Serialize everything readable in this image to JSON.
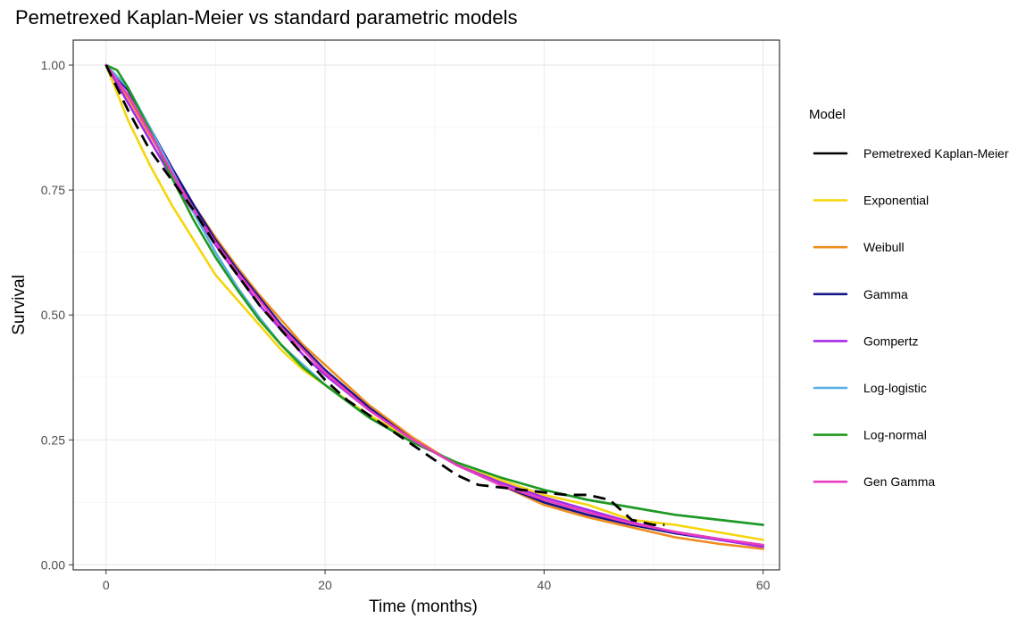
{
  "chart_data": {
    "type": "line",
    "title": "Pemetrexed Kaplan-Meier vs standard parametric models",
    "xlabel": "Time (months)",
    "ylabel": "Survival",
    "xlim": [
      -3,
      61.5
    ],
    "ylim": [
      -0.01,
      1.05
    ],
    "xticks": [
      0,
      20,
      40,
      60
    ],
    "yticks": [
      0.0,
      0.25,
      0.5,
      0.75,
      1.0
    ],
    "ytick_labels": [
      "0.00",
      "0.25",
      "0.50",
      "0.75",
      "1.00"
    ],
    "grid": true,
    "legend": {
      "title": "Model",
      "position": "right"
    },
    "series": [
      {
        "name": "Pemetrexed Kaplan-Meier",
        "color": "#000000",
        "style": "dashed",
        "points": [
          [
            0,
            1.0
          ],
          [
            2,
            0.91
          ],
          [
            4,
            0.83
          ],
          [
            6,
            0.77
          ],
          [
            8,
            0.71
          ],
          [
            10,
            0.64
          ],
          [
            12,
            0.58
          ],
          [
            14,
            0.52
          ],
          [
            16,
            0.47
          ],
          [
            18,
            0.42
          ],
          [
            20,
            0.37
          ],
          [
            22,
            0.33
          ],
          [
            24,
            0.3
          ],
          [
            26,
            0.27
          ],
          [
            28,
            0.24
          ],
          [
            30,
            0.21
          ],
          [
            32,
            0.18
          ],
          [
            34,
            0.16
          ],
          [
            36,
            0.155
          ],
          [
            38,
            0.15
          ],
          [
            40,
            0.145
          ],
          [
            42,
            0.14
          ],
          [
            44,
            0.14
          ],
          [
            46,
            0.13
          ],
          [
            47,
            0.11
          ],
          [
            48,
            0.09
          ],
          [
            50,
            0.08
          ],
          [
            51,
            0.08
          ]
        ]
      },
      {
        "name": "Exponential",
        "color": "#f5d60d",
        "style": "solid",
        "points": [
          [
            0,
            1.0
          ],
          [
            2,
            0.89
          ],
          [
            4,
            0.8
          ],
          [
            6,
            0.72
          ],
          [
            8,
            0.65
          ],
          [
            10,
            0.58
          ],
          [
            12,
            0.53
          ],
          [
            14,
            0.48
          ],
          [
            16,
            0.43
          ],
          [
            18,
            0.39
          ],
          [
            20,
            0.36
          ],
          [
            24,
            0.3
          ],
          [
            28,
            0.25
          ],
          [
            32,
            0.2
          ],
          [
            36,
            0.17
          ],
          [
            40,
            0.14
          ],
          [
            44,
            0.12
          ],
          [
            48,
            0.09
          ],
          [
            52,
            0.08
          ],
          [
            56,
            0.065
          ],
          [
            60,
            0.05
          ]
        ]
      },
      {
        "name": "Weibull",
        "color": "#f08c1d",
        "style": "solid",
        "points": [
          [
            0,
            1.0
          ],
          [
            2,
            0.935
          ],
          [
            4,
            0.86
          ],
          [
            6,
            0.79
          ],
          [
            8,
            0.72
          ],
          [
            10,
            0.655
          ],
          [
            12,
            0.595
          ],
          [
            14,
            0.54
          ],
          [
            16,
            0.49
          ],
          [
            18,
            0.44
          ],
          [
            20,
            0.4
          ],
          [
            24,
            0.32
          ],
          [
            28,
            0.255
          ],
          [
            32,
            0.2
          ],
          [
            36,
            0.16
          ],
          [
            40,
            0.12
          ],
          [
            44,
            0.095
          ],
          [
            48,
            0.075
          ],
          [
            52,
            0.055
          ],
          [
            56,
            0.042
          ],
          [
            60,
            0.032
          ]
        ]
      },
      {
        "name": "Gamma",
        "color": "#14148a",
        "style": "solid",
        "points": [
          [
            0,
            1.0
          ],
          [
            2,
            0.95
          ],
          [
            4,
            0.875
          ],
          [
            6,
            0.795
          ],
          [
            8,
            0.72
          ],
          [
            10,
            0.65
          ],
          [
            12,
            0.59
          ],
          [
            14,
            0.535
          ],
          [
            16,
            0.48
          ],
          [
            18,
            0.435
          ],
          [
            20,
            0.39
          ],
          [
            24,
            0.315
          ],
          [
            28,
            0.25
          ],
          [
            32,
            0.2
          ],
          [
            36,
            0.16
          ],
          [
            40,
            0.125
          ],
          [
            44,
            0.1
          ],
          [
            48,
            0.08
          ],
          [
            52,
            0.063
          ],
          [
            56,
            0.05
          ],
          [
            60,
            0.038
          ]
        ]
      },
      {
        "name": "Gompertz",
        "color": "#a52be6",
        "style": "solid",
        "points": [
          [
            0,
            1.0
          ],
          [
            2,
            0.925
          ],
          [
            4,
            0.85
          ],
          [
            6,
            0.775
          ],
          [
            8,
            0.705
          ],
          [
            10,
            0.64
          ],
          [
            12,
            0.58
          ],
          [
            14,
            0.52
          ],
          [
            16,
            0.47
          ],
          [
            18,
            0.42
          ],
          [
            20,
            0.38
          ],
          [
            24,
            0.31
          ],
          [
            28,
            0.25
          ],
          [
            32,
            0.2
          ],
          [
            36,
            0.165
          ],
          [
            40,
            0.135
          ],
          [
            44,
            0.11
          ],
          [
            48,
            0.085
          ],
          [
            52,
            0.065
          ],
          [
            56,
            0.05
          ],
          [
            60,
            0.036
          ]
        ]
      },
      {
        "name": "Log-logistic",
        "color": "#5aaee6",
        "style": "solid",
        "points": [
          [
            0,
            1.0
          ],
          [
            2,
            0.955
          ],
          [
            4,
            0.875
          ],
          [
            6,
            0.79
          ],
          [
            8,
            0.705
          ],
          [
            10,
            0.625
          ],
          [
            12,
            0.555
          ],
          [
            14,
            0.495
          ],
          [
            16,
            0.44
          ],
          [
            18,
            0.4
          ],
          [
            20,
            0.36
          ],
          [
            24,
            0.295
          ],
          [
            28,
            0.245
          ],
          [
            32,
            0.205
          ],
          [
            36,
            0.175
          ],
          [
            40,
            0.15
          ],
          [
            44,
            0.13
          ],
          [
            48,
            0.115
          ],
          [
            52,
            0.1
          ],
          [
            56,
            0.09
          ],
          [
            60,
            0.08
          ]
        ]
      },
      {
        "name": "Log-normal",
        "color": "#1f9a1f",
        "style": "solid",
        "points": [
          [
            0,
            1.0
          ],
          [
            1,
            0.99
          ],
          [
            2,
            0.955
          ],
          [
            4,
            0.87
          ],
          [
            6,
            0.775
          ],
          [
            8,
            0.69
          ],
          [
            10,
            0.615
          ],
          [
            12,
            0.55
          ],
          [
            14,
            0.49
          ],
          [
            16,
            0.44
          ],
          [
            18,
            0.395
          ],
          [
            20,
            0.36
          ],
          [
            24,
            0.295
          ],
          [
            28,
            0.245
          ],
          [
            32,
            0.205
          ],
          [
            36,
            0.175
          ],
          [
            40,
            0.15
          ],
          [
            44,
            0.13
          ],
          [
            48,
            0.115
          ],
          [
            52,
            0.1
          ],
          [
            56,
            0.09
          ],
          [
            60,
            0.08
          ]
        ]
      },
      {
        "name": "Gen Gamma",
        "color": "#e83cc0",
        "style": "solid",
        "points": [
          [
            0,
            1.0
          ],
          [
            2,
            0.94
          ],
          [
            4,
            0.865
          ],
          [
            6,
            0.785
          ],
          [
            8,
            0.71
          ],
          [
            10,
            0.645
          ],
          [
            12,
            0.585
          ],
          [
            14,
            0.53
          ],
          [
            16,
            0.475
          ],
          [
            18,
            0.43
          ],
          [
            20,
            0.385
          ],
          [
            24,
            0.31
          ],
          [
            28,
            0.25
          ],
          [
            32,
            0.2
          ],
          [
            36,
            0.16
          ],
          [
            40,
            0.13
          ],
          [
            44,
            0.105
          ],
          [
            48,
            0.083
          ],
          [
            52,
            0.066
          ],
          [
            56,
            0.052
          ],
          [
            60,
            0.04
          ]
        ]
      }
    ]
  }
}
